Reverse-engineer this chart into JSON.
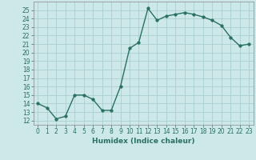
{
  "x": [
    0,
    1,
    2,
    3,
    4,
    5,
    6,
    7,
    8,
    9,
    10,
    11,
    12,
    13,
    14,
    15,
    16,
    17,
    18,
    19,
    20,
    21,
    22,
    23
  ],
  "y": [
    14,
    13.5,
    12.2,
    12.5,
    15,
    15,
    14.5,
    13.2,
    13.2,
    16,
    20.5,
    21.2,
    25.2,
    23.8,
    24.3,
    24.5,
    24.7,
    24.5,
    24.2,
    23.8,
    23.2,
    21.8,
    20.8,
    21
  ],
  "line_color": "#2a7060",
  "marker_color": "#2a7060",
  "bg_color": "#cce8e8",
  "grid_color": "#aad0d0",
  "xlabel": "Humidex (Indice chaleur)",
  "xlim": [
    -0.5,
    23.5
  ],
  "ylim": [
    11.5,
    26
  ],
  "yticks": [
    12,
    13,
    14,
    15,
    16,
    17,
    18,
    19,
    20,
    21,
    22,
    23,
    24,
    25
  ],
  "xticks": [
    0,
    1,
    2,
    3,
    4,
    5,
    6,
    7,
    8,
    9,
    10,
    11,
    12,
    13,
    14,
    15,
    16,
    17,
    18,
    19,
    20,
    21,
    22,
    23
  ],
  "tick_label_fontsize": 5.5,
  "xlabel_fontsize": 6.5,
  "marker_size": 2.5,
  "line_width": 1.0
}
